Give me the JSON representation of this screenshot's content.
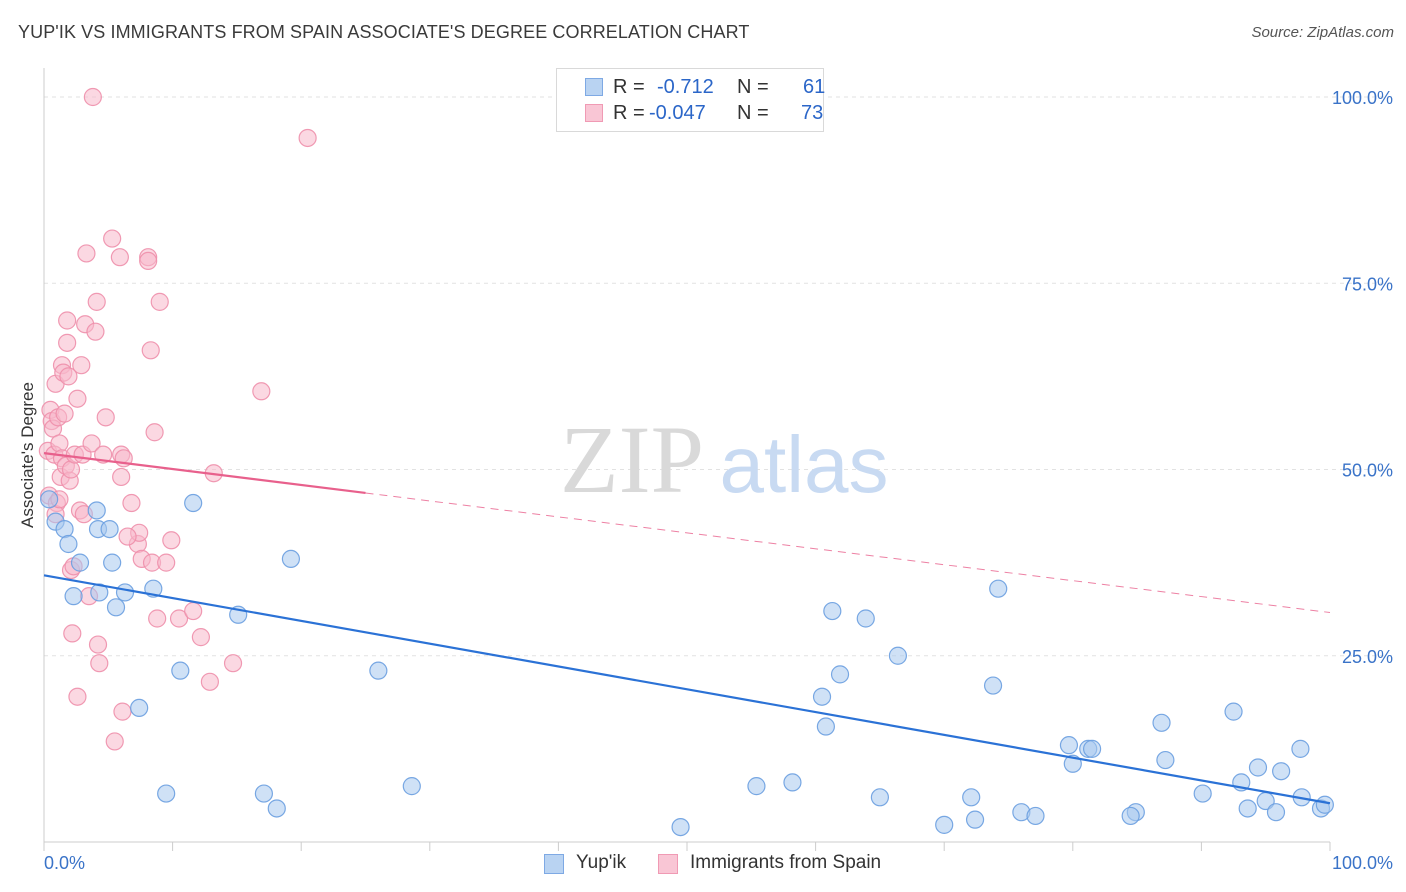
{
  "title": "YUP'IK VS IMMIGRANTS FROM SPAIN ASSOCIATE'S DEGREE CORRELATION CHART",
  "source": "Source: ZipAtlas.com",
  "watermark": {
    "zip": "ZIP",
    "atlas": "atlas"
  },
  "legend": {
    "r_label": "R =",
    "n_label": "N =",
    "series1": {
      "r": "-0.712",
      "n": "61"
    },
    "series2": {
      "r": "-0.047",
      "n": "73"
    }
  },
  "colors": {
    "blue_fill": "#a8c8ee",
    "blue_stroke": "#6a9fe0",
    "blue_line": "#2b72d6",
    "pink_fill": "#f7b8cb",
    "pink_stroke": "#ee8fab",
    "pink_line": "#e8608c",
    "axis_text": "#3a73c8"
  },
  "chart_data": {
    "type": "scatter",
    "title": "YUP'IK VS IMMIGRANTS FROM SPAIN ASSOCIATE'S DEGREE CORRELATION CHART",
    "xlabel": "",
    "ylabel": "Associate's Degree",
    "xlim": [
      0,
      100
    ],
    "ylim": [
      0,
      100
    ],
    "x_tick_labels": [
      "0.0%",
      "100.0%"
    ],
    "y_ticks": [
      25,
      50,
      75,
      100
    ],
    "y_tick_labels": [
      "25.0%",
      "50.0%",
      "75.0%",
      "100.0%"
    ],
    "grid": true,
    "series": [
      {
        "name": "Yup'ik",
        "color": "#a8c8ee",
        "r": -0.712,
        "n": 61,
        "trend": {
          "x0": 0,
          "y0": 35.8,
          "x1": 100,
          "y1": 5.2,
          "dashed_from": null
        },
        "points": [
          [
            0.4,
            46
          ],
          [
            0.9,
            43
          ],
          [
            1.6,
            42
          ],
          [
            1.9,
            40
          ],
          [
            2.3,
            33
          ],
          [
            2.8,
            37.5
          ],
          [
            4.1,
            44.5
          ],
          [
            4.2,
            42
          ],
          [
            4.3,
            33.5
          ],
          [
            5.1,
            42
          ],
          [
            5.3,
            37.5
          ],
          [
            5.6,
            31.5
          ],
          [
            6.3,
            33.5
          ],
          [
            7.4,
            18
          ],
          [
            8.5,
            34
          ],
          [
            9.5,
            6.5
          ],
          [
            10.6,
            23
          ],
          [
            11.6,
            45.5
          ],
          [
            15.1,
            30.5
          ],
          [
            17.1,
            6.5
          ],
          [
            18.1,
            4.5
          ],
          [
            19.2,
            38
          ],
          [
            26,
            23
          ],
          [
            28.6,
            7.5
          ],
          [
            49.5,
            2
          ],
          [
            55.4,
            7.5
          ],
          [
            58.2,
            8
          ],
          [
            60.5,
            19.5
          ],
          [
            60.8,
            15.5
          ],
          [
            61.3,
            31
          ],
          [
            61.9,
            22.5
          ],
          [
            63.9,
            30
          ],
          [
            65,
            6
          ],
          [
            66.4,
            25
          ],
          [
            70,
            2.3
          ],
          [
            72.1,
            6
          ],
          [
            72.4,
            3
          ],
          [
            73.8,
            21
          ],
          [
            74.2,
            34
          ],
          [
            76,
            4
          ],
          [
            77.1,
            3.5
          ],
          [
            79.7,
            13
          ],
          [
            80,
            10.5
          ],
          [
            81.2,
            12.5
          ],
          [
            81.5,
            12.5
          ],
          [
            84.9,
            4
          ],
          [
            86.9,
            16
          ],
          [
            87.2,
            11
          ],
          [
            90.1,
            6.5
          ],
          [
            92.5,
            17.5
          ],
          [
            93.1,
            8
          ],
          [
            93.6,
            4.5
          ],
          [
            94.4,
            10
          ],
          [
            95,
            5.5
          ],
          [
            95.8,
            4
          ],
          [
            96.2,
            9.5
          ],
          [
            97.7,
            12.5
          ],
          [
            97.8,
            6
          ],
          [
            99.3,
            4.5
          ],
          [
            99.6,
            5
          ],
          [
            84.5,
            3.5
          ]
        ]
      },
      {
        "name": "Immigrants from Spain",
        "color": "#f7b8cb",
        "r": -0.047,
        "n": 73,
        "trend": {
          "x0": 0,
          "y0": 52.2,
          "x1": 100,
          "y1": 30.8,
          "dashed_from": 25
        },
        "points": [
          [
            0.3,
            52.5
          ],
          [
            0.4,
            46.5
          ],
          [
            0.5,
            58
          ],
          [
            0.6,
            56.5
          ],
          [
            0.7,
            55.5
          ],
          [
            0.8,
            52
          ],
          [
            0.9,
            61.5
          ],
          [
            1,
            45.5
          ],
          [
            1.1,
            57
          ],
          [
            1.2,
            53.5
          ],
          [
            1.3,
            49
          ],
          [
            1.4,
            64
          ],
          [
            1.4,
            51.5
          ],
          [
            1.5,
            63
          ],
          [
            1.6,
            57.5
          ],
          [
            1.7,
            50.5
          ],
          [
            1.8,
            67
          ],
          [
            1.8,
            70
          ],
          [
            1.9,
            62.5
          ],
          [
            2,
            48.5
          ],
          [
            2.1,
            50
          ],
          [
            2.1,
            36.5
          ],
          [
            2.2,
            28
          ],
          [
            2.3,
            37
          ],
          [
            2.4,
            52
          ],
          [
            2.6,
            19.5
          ],
          [
            2.6,
            59.5
          ],
          [
            2.8,
            44.5
          ],
          [
            2.9,
            64
          ],
          [
            3,
            52
          ],
          [
            3.2,
            69.5
          ],
          [
            3.3,
            79
          ],
          [
            3.5,
            33
          ],
          [
            3.7,
            53.5
          ],
          [
            3.8,
            100
          ],
          [
            4,
            68.5
          ],
          [
            4.1,
            72.5
          ],
          [
            4.2,
            26.5
          ],
          [
            4.3,
            24
          ],
          [
            4.6,
            52
          ],
          [
            4.8,
            57
          ],
          [
            5.3,
            81
          ],
          [
            5.5,
            13.5
          ],
          [
            5.9,
            78.5
          ],
          [
            6,
            49
          ],
          [
            6,
            52
          ],
          [
            6.1,
            17.5
          ],
          [
            6.2,
            51.5
          ],
          [
            6.8,
            45.5
          ],
          [
            7.3,
            40
          ],
          [
            7.4,
            41.5
          ],
          [
            7.6,
            38
          ],
          [
            8.1,
            78.5
          ],
          [
            8.1,
            78
          ],
          [
            8.3,
            66
          ],
          [
            8.4,
            37.5
          ],
          [
            8.6,
            55
          ],
          [
            8.8,
            30
          ],
          [
            9,
            72.5
          ],
          [
            9.5,
            37.5
          ],
          [
            9.9,
            40.5
          ],
          [
            10.5,
            30
          ],
          [
            11.6,
            31
          ],
          [
            12.2,
            27.5
          ],
          [
            12.9,
            21.5
          ],
          [
            13.2,
            49.5
          ],
          [
            14.7,
            24
          ],
          [
            16.9,
            60.5
          ],
          [
            20.5,
            94.5
          ],
          [
            0.9,
            44
          ],
          [
            1.2,
            46
          ],
          [
            3.1,
            44
          ],
          [
            6.5,
            41
          ]
        ]
      }
    ]
  },
  "bottom_legend": [
    "Yup'ik",
    "Immigrants from Spain"
  ]
}
